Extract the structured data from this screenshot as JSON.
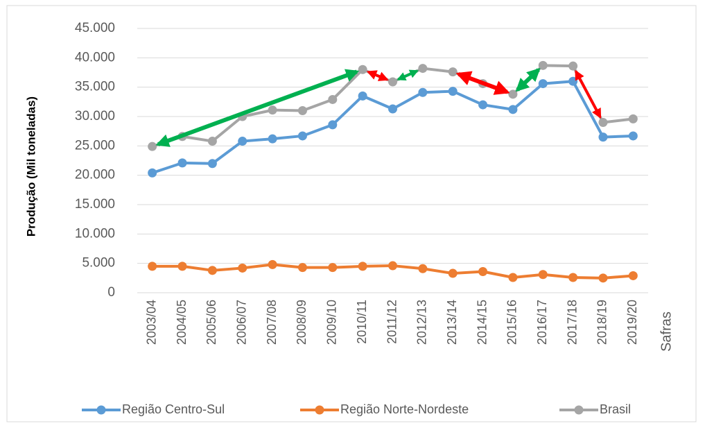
{
  "chart_data": {
    "type": "line",
    "y_label": "Produção (Mil toneladas)",
    "x_label": "Safras",
    "categories": [
      "2003/04",
      "2004/05",
      "2005/06",
      "2006/07",
      "2007/08",
      "2008/09",
      "2009/10",
      "2010/11",
      "2011/12",
      "2012/13",
      "2013/14",
      "2014/15",
      "2015/16",
      "2016/17",
      "2017/18",
      "2018/19",
      "2019/20"
    ],
    "series": [
      {
        "name": "Região Centro-Sul",
        "color": "#5b9bd5",
        "values": [
          20400,
          22100,
          22000,
          25800,
          26200,
          26700,
          28600,
          33500,
          31300,
          34100,
          34300,
          32000,
          31200,
          35600,
          36000,
          26500,
          26700
        ]
      },
      {
        "name": "Região Norte-Nordeste",
        "color": "#ed7d31",
        "values": [
          4500,
          4500,
          3800,
          4200,
          4800,
          4300,
          4300,
          4500,
          4600,
          4100,
          3300,
          3600,
          2600,
          3100,
          2600,
          2500,
          2900
        ]
      },
      {
        "name": "Brasil",
        "color": "#a5a5a5",
        "values": [
          24900,
          26600,
          25800,
          30000,
          31100,
          31000,
          32900,
          38000,
          35900,
          38200,
          37600,
          35600,
          33800,
          38700,
          38600,
          29000,
          29600
        ]
      }
    ],
    "ylim": [
      0,
      45000
    ],
    "yticks": [
      0,
      {
        "value": 5000,
        "label": "5.000"
      },
      {
        "value": 10000,
        "label": "10.000"
      },
      {
        "value": 15000,
        "label": "15.000"
      },
      {
        "value": 20000,
        "label": "20.000"
      },
      {
        "value": 25000,
        "label": "25.000"
      },
      {
        "value": 30000,
        "label": "30.000"
      },
      {
        "value": 35000,
        "label": "35.000"
      },
      {
        "value": 40000,
        "label": "40.000"
      },
      {
        "value": 45000,
        "label": "45.000"
      }
    ],
    "grid": true,
    "legend": "bottom"
  }
}
